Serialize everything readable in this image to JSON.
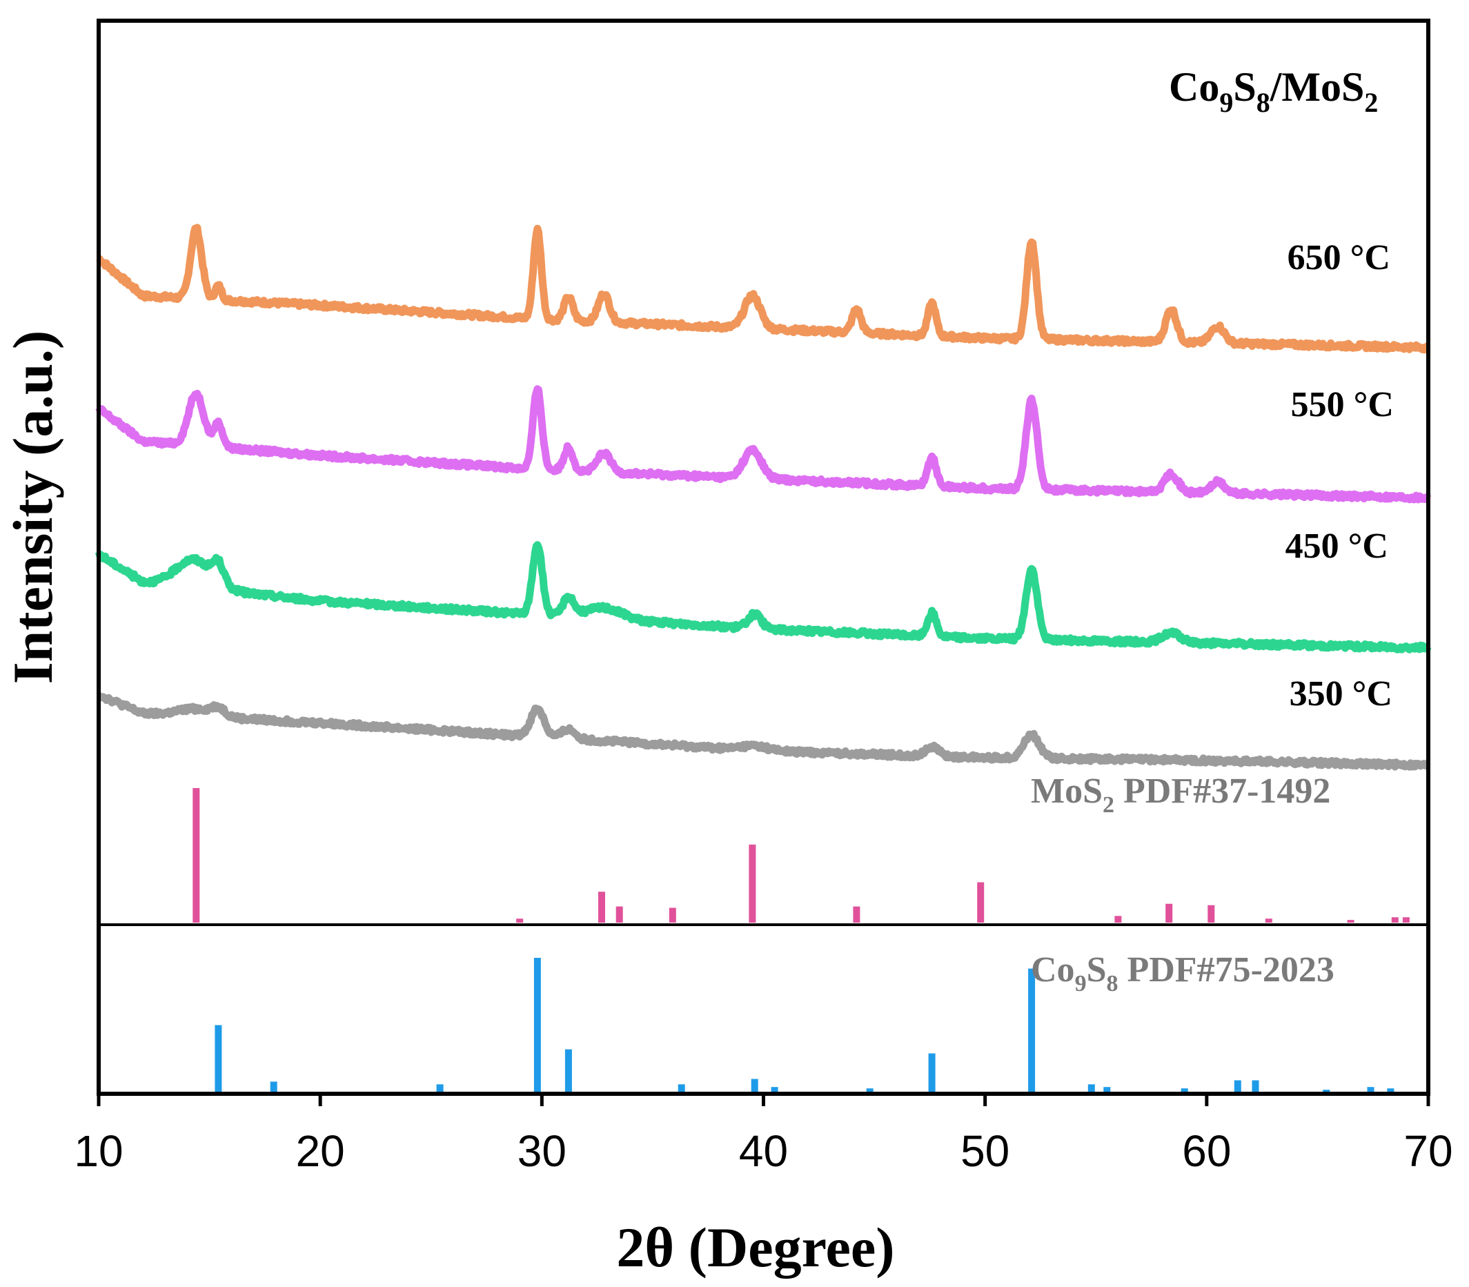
{
  "chart_data": {
    "type": "line",
    "title": "Co9S8/MoS2",
    "title_parts": {
      "a": "Co",
      "b": "9",
      "c": "S",
      "d": "8",
      "e": "/MoS",
      "f": "2"
    },
    "xlabel": "2θ (Degree)",
    "ylabel": "Intensity (a.u.)",
    "xlim": [
      10,
      70
    ],
    "xticks": [
      10,
      20,
      30,
      40,
      50,
      60,
      70
    ],
    "xtick_labels": [
      "10",
      "20",
      "30",
      "40",
      "50",
      "60",
      "70"
    ],
    "series": [
      {
        "name": "650 °C",
        "label": "650 °C",
        "color": "#F0965A",
        "baseline": [
          [
            10,
            4.6
          ],
          [
            12,
            4.2
          ],
          [
            20,
            4.1
          ],
          [
            30,
            3.95
          ],
          [
            40,
            3.85
          ],
          [
            50,
            3.75
          ],
          [
            60,
            3.7
          ],
          [
            70,
            3.65
          ]
        ],
        "peaks": [
          [
            14.4,
            0.75,
            0.25
          ],
          [
            15.4,
            0.15,
            0.15
          ],
          [
            29.8,
            0.95,
            0.18
          ],
          [
            31.2,
            0.25,
            0.2
          ],
          [
            32.8,
            0.3,
            0.25
          ],
          [
            39.5,
            0.35,
            0.35
          ],
          [
            44.2,
            0.25,
            0.2
          ],
          [
            47.6,
            0.35,
            0.18
          ],
          [
            52.1,
            1.05,
            0.22
          ],
          [
            58.4,
            0.35,
            0.25
          ],
          [
            60.5,
            0.18,
            0.3
          ]
        ]
      },
      {
        "name": "550 °C",
        "label": "550 °C",
        "color": "#DE6FF2",
        "baseline": [
          [
            10,
            3.0
          ],
          [
            12,
            2.65
          ],
          [
            20,
            2.5
          ],
          [
            30,
            2.35
          ],
          [
            40,
            2.25
          ],
          [
            50,
            2.15
          ],
          [
            60,
            2.1
          ],
          [
            70,
            2.05
          ]
        ],
        "peaks": [
          [
            14.4,
            0.55,
            0.35
          ],
          [
            15.4,
            0.25,
            0.2
          ],
          [
            29.8,
            0.85,
            0.2
          ],
          [
            31.2,
            0.25,
            0.2
          ],
          [
            32.8,
            0.2,
            0.3
          ],
          [
            39.5,
            0.3,
            0.4
          ],
          [
            47.6,
            0.3,
            0.2
          ],
          [
            52.1,
            0.95,
            0.25
          ],
          [
            58.4,
            0.2,
            0.3
          ],
          [
            60.5,
            0.12,
            0.3
          ]
        ]
      },
      {
        "name": "450 °C",
        "label": "450 °C",
        "color": "#2DD690",
        "baseline": [
          [
            10,
            1.45
          ],
          [
            12,
            1.15
          ],
          [
            20,
            0.95
          ],
          [
            30,
            0.8
          ],
          [
            40,
            0.65
          ],
          [
            50,
            0.55
          ],
          [
            60,
            0.5
          ],
          [
            70,
            0.45
          ]
        ],
        "peaks": [
          [
            14.3,
            0.3,
            0.8
          ],
          [
            15.4,
            0.2,
            0.25
          ],
          [
            29.8,
            0.75,
            0.22
          ],
          [
            31.2,
            0.2,
            0.25
          ],
          [
            32.8,
            0.12,
            0.8
          ],
          [
            39.6,
            0.15,
            0.3
          ],
          [
            47.6,
            0.25,
            0.2
          ],
          [
            52.1,
            0.75,
            0.25
          ],
          [
            58.4,
            0.1,
            0.4
          ]
        ]
      },
      {
        "name": "350 °C",
        "label": "350 °C",
        "color": "#9C9C9C",
        "baseline": [
          [
            10,
            -0.05
          ],
          [
            12,
            -0.25
          ],
          [
            20,
            -0.35
          ],
          [
            30,
            -0.5
          ],
          [
            40,
            -0.65
          ],
          [
            50,
            -0.72
          ],
          [
            60,
            -0.75
          ],
          [
            70,
            -0.8
          ]
        ],
        "peaks": [
          [
            14.4,
            0.08,
            0.8
          ],
          [
            15.4,
            0.08,
            0.3
          ],
          [
            29.8,
            0.3,
            0.3
          ],
          [
            31.2,
            0.1,
            0.3
          ],
          [
            39.6,
            0.05,
            0.6
          ],
          [
            47.6,
            0.1,
            0.3
          ],
          [
            52.1,
            0.25,
            0.35
          ]
        ]
      }
    ],
    "reference_patterns": [
      {
        "name": "MoS2 PDF#37-1492",
        "label_main": "MoS",
        "label_sub": "2",
        "label_rest": " PDF#37-1492",
        "color": "#E0519A",
        "positions": [
          14.4,
          29.0,
          32.7,
          33.5,
          35.9,
          39.5,
          44.2,
          49.8,
          56.0,
          58.3,
          60.2,
          62.8,
          66.5,
          68.5,
          69.0
        ],
        "intensities": [
          100,
          3,
          23,
          12,
          11,
          58,
          12,
          30,
          5,
          14,
          13,
          3,
          2,
          4,
          4
        ]
      },
      {
        "name": "Co9S8 PDF#75-2023",
        "label_main": "Co",
        "label_sub1": "9",
        "label_mid": "S",
        "label_sub2": "8",
        "label_rest": " PDF#75-2023",
        "color": "#1E9BE8",
        "positions": [
          15.4,
          17.9,
          25.4,
          29.8,
          31.2,
          36.3,
          39.6,
          40.5,
          44.8,
          47.6,
          52.1,
          54.8,
          55.5,
          59.0,
          61.4,
          62.2,
          65.4,
          67.4,
          68.3
        ],
        "intensities": [
          50,
          8,
          6,
          100,
          32,
          6,
          10,
          4,
          3,
          29,
          92,
          6,
          4,
          3,
          9,
          9,
          2,
          4,
          3
        ]
      }
    ],
    "grid": false,
    "legend": "inline labels at right"
  }
}
